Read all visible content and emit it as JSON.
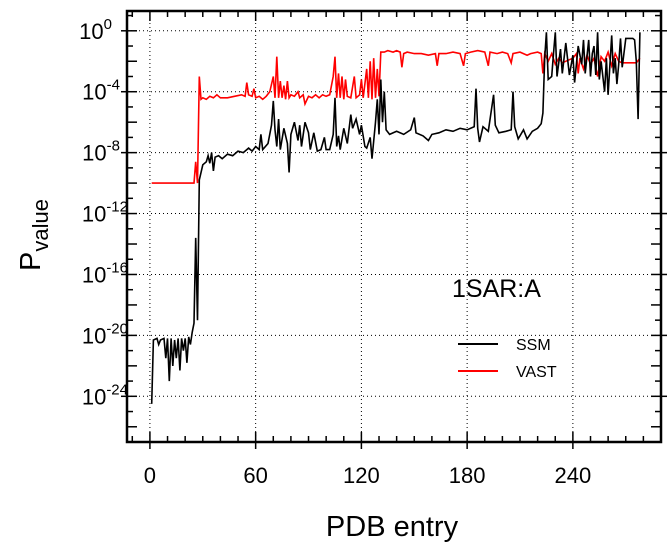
{
  "chart_data": {
    "type": "line",
    "title": "",
    "annotation": "1SAR:A",
    "xlabel": "PDB entry",
    "ylabel_main": "P",
    "ylabel_sub": "value",
    "yscale": "log10",
    "xlim": [
      -13,
      290
    ],
    "ylim_log10": [
      1.3,
      -27
    ],
    "x_ticks": [
      "0",
      "60",
      "120",
      "180",
      "240"
    ],
    "x_tick_values": [
      0,
      60,
      120,
      180,
      240
    ],
    "y_ticks": [
      {
        "base": "10",
        "exp": "0",
        "log10": 0
      },
      {
        "base": "10",
        "exp": "-4",
        "log10": -4
      },
      {
        "base": "10",
        "exp": "-8",
        "log10": -8
      },
      {
        "base": "10",
        "exp": "-12",
        "log10": -12
      },
      {
        "base": "10",
        "exp": "-16",
        "log10": -16
      },
      {
        "base": "10",
        "exp": "-20",
        "log10": -20
      },
      {
        "base": "10",
        "exp": "-24",
        "log10": -24
      }
    ],
    "grid": true,
    "legend_position": "lower-right",
    "series": [
      {
        "name": "SSM",
        "color": "#000000",
        "points_log10": [
          [
            1,
            -24.5
          ],
          [
            2,
            -20.3
          ],
          [
            4,
            -20.2
          ],
          [
            5,
            -20.6
          ],
          [
            6,
            -20.3
          ],
          [
            8,
            -20.2
          ],
          [
            9,
            -21.5
          ],
          [
            10,
            -20.2
          ],
          [
            11,
            -23.0
          ],
          [
            12,
            -20.2
          ],
          [
            13,
            -22.0
          ],
          [
            14,
            -20.3
          ],
          [
            15,
            -21.5
          ],
          [
            16,
            -20.2
          ],
          [
            17,
            -22.3
          ],
          [
            18,
            -20.2
          ],
          [
            19,
            -21.0
          ],
          [
            20,
            -20.2
          ],
          [
            21,
            -21.8
          ],
          [
            22,
            -20.1
          ],
          [
            23,
            -20.6
          ],
          [
            24,
            -19.8
          ],
          [
            25,
            -19.2
          ],
          [
            26,
            -13.6
          ],
          [
            27,
            -19.0
          ],
          [
            28,
            -9.8
          ],
          [
            30,
            -8.8
          ],
          [
            32,
            -8.6
          ],
          [
            33,
            -8.2
          ],
          [
            34,
            -8.7
          ],
          [
            35,
            -8.0
          ],
          [
            36,
            -9.2
          ],
          [
            37,
            -8.3
          ],
          [
            39,
            -8.2
          ],
          [
            41,
            -8.4
          ],
          [
            44,
            -8.1
          ],
          [
            47,
            -8.2
          ],
          [
            50,
            -7.9
          ],
          [
            53,
            -8.0
          ],
          [
            56,
            -7.7
          ],
          [
            58,
            -7.9
          ],
          [
            60,
            -7.6
          ],
          [
            62,
            -7.8
          ],
          [
            63,
            -6.8
          ],
          [
            64,
            -7.8
          ],
          [
            67,
            -7.4
          ],
          [
            69,
            -6.2
          ],
          [
            70,
            -4.6
          ],
          [
            71,
            -6.5
          ],
          [
            72,
            -7.6
          ],
          [
            73,
            -5.8
          ],
          [
            74,
            -7.8
          ],
          [
            76,
            -6.4
          ],
          [
            78,
            -7.4
          ],
          [
            79,
            -9.3
          ],
          [
            80,
            -6.8
          ],
          [
            82,
            -6.0
          ],
          [
            84,
            -7.2
          ],
          [
            85,
            -6.2
          ],
          [
            86,
            -7.6
          ],
          [
            88,
            -6.0
          ],
          [
            90,
            -6.7
          ],
          [
            91,
            -7.8
          ],
          [
            93,
            -6.7
          ],
          [
            95,
            -7.9
          ],
          [
            97,
            -7.8
          ],
          [
            99,
            -7.0
          ],
          [
            100,
            -7.8
          ],
          [
            102,
            -7.8
          ],
          [
            104,
            -6.8
          ],
          [
            105,
            -4.4
          ],
          [
            106,
            -7.6
          ],
          [
            107,
            -6.9
          ],
          [
            108,
            -7.8
          ],
          [
            110,
            -6.4
          ],
          [
            112,
            -7.4
          ],
          [
            114,
            -5.5
          ],
          [
            115,
            -6.4
          ],
          [
            117,
            -5.8
          ],
          [
            119,
            -6.8
          ],
          [
            120,
            -6.2
          ],
          [
            122,
            -7.6
          ],
          [
            123,
            -7.7
          ],
          [
            125,
            -7.0
          ],
          [
            126,
            -8.4
          ],
          [
            128,
            -6.0
          ],
          [
            129,
            -4.5
          ],
          [
            130,
            -6.8
          ],
          [
            131,
            -3.2
          ],
          [
            132,
            -6.0
          ],
          [
            133,
            -4.0
          ],
          [
            134,
            -6.5
          ],
          [
            136,
            -6.8
          ],
          [
            140,
            -6.6
          ],
          [
            144,
            -6.8
          ],
          [
            148,
            -6.5
          ],
          [
            150,
            -5.7
          ],
          [
            151,
            -6.7
          ],
          [
            155,
            -6.9
          ],
          [
            158,
            -7.2
          ],
          [
            160,
            -6.8
          ],
          [
            164,
            -6.7
          ],
          [
            168,
            -6.5
          ],
          [
            172,
            -6.6
          ],
          [
            176,
            -6.4
          ],
          [
            180,
            -6.5
          ],
          [
            184,
            -6.3
          ],
          [
            185,
            -3.8
          ],
          [
            186,
            -6.4
          ],
          [
            187,
            -7.3
          ],
          [
            189,
            -6.3
          ],
          [
            192,
            -6.6
          ],
          [
            195,
            -4.2
          ],
          [
            196,
            -6.2
          ],
          [
            198,
            -6.7
          ],
          [
            202,
            -6.6
          ],
          [
            205,
            -6.5
          ],
          [
            206,
            -4.0
          ],
          [
            207,
            -6.3
          ],
          [
            209,
            -7.1
          ],
          [
            212,
            -6.5
          ],
          [
            214,
            -7.1
          ],
          [
            217,
            -6.6
          ],
          [
            220,
            -6.4
          ],
          [
            222,
            -6.1
          ],
          [
            223,
            -5.4
          ],
          [
            224,
            -1.8
          ],
          [
            225,
            -0.1
          ],
          [
            226,
            -3.2
          ],
          [
            228,
            -3.0
          ],
          [
            229,
            -1.5
          ],
          [
            230,
            -0.1
          ],
          [
            231,
            -3.0
          ],
          [
            233,
            -1.2
          ],
          [
            234,
            -2.8
          ],
          [
            236,
            -0.8
          ],
          [
            238,
            -2.9
          ],
          [
            240,
            -1.6
          ],
          [
            241,
            -3.4
          ],
          [
            243,
            -1.0
          ],
          [
            245,
            -2.2
          ],
          [
            246,
            -0.6
          ],
          [
            247,
            -2.8
          ],
          [
            249,
            -0.6
          ],
          [
            250,
            -3.0
          ],
          [
            251,
            -1.5
          ],
          [
            252,
            -1.0
          ],
          [
            253,
            -2.9
          ],
          [
            254,
            -0.1
          ],
          [
            255,
            -3.2
          ],
          [
            256,
            -2.0
          ],
          [
            258,
            -4.0
          ],
          [
            259,
            -1.8
          ],
          [
            260,
            -4.2
          ],
          [
            262,
            -0.3
          ],
          [
            263,
            -2.8
          ],
          [
            264,
            -1.8
          ],
          [
            265,
            -3.5
          ],
          [
            266,
            -2.2
          ],
          [
            267,
            -0.5
          ],
          [
            268,
            -2.4
          ],
          [
            270,
            -0.5
          ],
          [
            274,
            -0.5
          ],
          [
            275,
            -0.6
          ],
          [
            276,
            -2.0
          ],
          [
            277,
            -5.8
          ],
          [
            278,
            -0.1
          ]
        ]
      },
      {
        "name": "VAST",
        "color": "#ff0000",
        "points_log10": [
          [
            1,
            -10
          ],
          [
            25,
            -10
          ],
          [
            26,
            -8.6
          ],
          [
            27,
            -10
          ],
          [
            28,
            -3.0
          ],
          [
            29,
            -4.5
          ],
          [
            30,
            -4.4
          ],
          [
            32,
            -4.5
          ],
          [
            34,
            -4.3
          ],
          [
            36,
            -4.4
          ],
          [
            38,
            -4.2
          ],
          [
            40,
            -4.4
          ],
          [
            44,
            -4.4
          ],
          [
            48,
            -4.3
          ],
          [
            52,
            -4.2
          ],
          [
            54,
            -4.3
          ],
          [
            55,
            -3.4
          ],
          [
            56,
            -4.2
          ],
          [
            58,
            -4.3
          ],
          [
            59,
            -3.8
          ],
          [
            60,
            -4.4
          ],
          [
            62,
            -4.3
          ],
          [
            64,
            -4.5
          ],
          [
            66,
            -4.3
          ],
          [
            68,
            -4.0
          ],
          [
            70,
            -3.0
          ],
          [
            71,
            -4.4
          ],
          [
            72,
            -1.7
          ],
          [
            73,
            -4.4
          ],
          [
            74,
            -3.3
          ],
          [
            75,
            -4.4
          ],
          [
            76,
            -3.6
          ],
          [
            77,
            -4.5
          ],
          [
            78,
            -3.3
          ],
          [
            79,
            -4.4
          ],
          [
            80,
            -4.2
          ],
          [
            82,
            -4.3
          ],
          [
            84,
            -4.0
          ],
          [
            85,
            -4.4
          ],
          [
            87,
            -4.2
          ],
          [
            88,
            -4.8
          ],
          [
            90,
            -4.3
          ],
          [
            92,
            -4.4
          ],
          [
            94,
            -4.2
          ],
          [
            96,
            -4.4
          ],
          [
            98,
            -4.2
          ],
          [
            100,
            -4.3
          ],
          [
            102,
            -4.2
          ],
          [
            104,
            -3.0
          ],
          [
            105,
            -1.7
          ],
          [
            106,
            -4.4
          ],
          [
            107,
            -2.8
          ],
          [
            108,
            -4.4
          ],
          [
            109,
            -3.0
          ],
          [
            110,
            -4.5
          ],
          [
            111,
            -3.2
          ],
          [
            112,
            -4.3
          ],
          [
            114,
            -4.4
          ],
          [
            116,
            -3.0
          ],
          [
            117,
            -4.4
          ],
          [
            119,
            -4.2
          ],
          [
            120,
            -3.2
          ],
          [
            121,
            -4.4
          ],
          [
            123,
            -2.5
          ],
          [
            124,
            -4.4
          ],
          [
            125,
            -2.0
          ],
          [
            126,
            -4.5
          ],
          [
            127,
            -1.8
          ],
          [
            128,
            -4.4
          ],
          [
            129,
            -2.5
          ],
          [
            130,
            -4.3
          ],
          [
            131,
            -1.4
          ],
          [
            133,
            -1.4
          ],
          [
            135,
            -1.3
          ],
          [
            138,
            -1.4
          ],
          [
            140,
            -1.3
          ],
          [
            142,
            -1.4
          ],
          [
            143,
            -2.4
          ],
          [
            144,
            -1.5
          ],
          [
            146,
            -1.4
          ],
          [
            150,
            -1.5
          ],
          [
            154,
            -1.5
          ],
          [
            158,
            -1.6
          ],
          [
            162,
            -1.5
          ],
          [
            163,
            -2.3
          ],
          [
            164,
            -1.5
          ],
          [
            168,
            -1.5
          ],
          [
            172,
            -1.4
          ],
          [
            176,
            -1.5
          ],
          [
            178,
            -2.3
          ],
          [
            179,
            -1.5
          ],
          [
            182,
            -1.4
          ],
          [
            186,
            -1.3
          ],
          [
            190,
            -1.4
          ],
          [
            192,
            -2.3
          ],
          [
            193,
            -1.4
          ],
          [
            197,
            -1.5
          ],
          [
            200,
            -1.4
          ],
          [
            203,
            -1.5
          ],
          [
            205,
            -2.1
          ],
          [
            206,
            -1.5
          ],
          [
            210,
            -1.4
          ],
          [
            214,
            -1.6
          ],
          [
            216,
            -1.5
          ],
          [
            220,
            -1.4
          ],
          [
            222,
            -1.5
          ],
          [
            223,
            -2.8
          ],
          [
            224,
            -1.5
          ],
          [
            226,
            -2.0
          ],
          [
            228,
            -1.5
          ],
          [
            230,
            -2.2
          ],
          [
            232,
            -1.8
          ],
          [
            234,
            -2.1
          ],
          [
            238,
            -1.9
          ],
          [
            240,
            -1.8
          ],
          [
            242,
            -1.5
          ],
          [
            243,
            -2.8
          ],
          [
            244,
            -1.8
          ],
          [
            246,
            -2.5
          ],
          [
            248,
            -1.6
          ],
          [
            250,
            -2.2
          ],
          [
            252,
            -1.8
          ],
          [
            254,
            -3.0
          ],
          [
            256,
            -1.7
          ],
          [
            258,
            -2.0
          ],
          [
            260,
            -1.4
          ],
          [
            262,
            -2.3
          ],
          [
            264,
            -1.5
          ],
          [
            266,
            -2.0
          ],
          [
            268,
            -2.1
          ],
          [
            272,
            -2.1
          ],
          [
            276,
            -2.1
          ],
          [
            278,
            -1.8
          ]
        ]
      }
    ]
  }
}
